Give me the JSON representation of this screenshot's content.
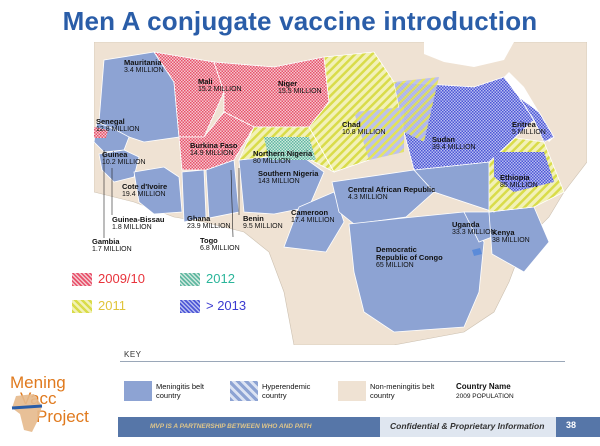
{
  "title": "Men A conjugate vaccine introduction",
  "colors": {
    "title": "#2a5da8",
    "belt": "#8da3d3",
    "non_belt": "#efe2d3",
    "ocean": "#ffffff",
    "hatch_2009": "#e8506a",
    "hatch_2011": "#d9dc4a",
    "hatch_2012": "#5fb7a0",
    "hatch_2013": "#4c55d6",
    "footer": "#5676a8"
  },
  "countries": [
    {
      "name": "Mauritania",
      "population": "3.4 MILLION"
    },
    {
      "name": "Senegal",
      "population": "12.8 MILLION"
    },
    {
      "name": "Mali",
      "population": "15.2 MILLION"
    },
    {
      "name": "Niger",
      "population": "15.5 MILLION"
    },
    {
      "name": "Chad",
      "population": "10.8 MILLION"
    },
    {
      "name": "Sudan",
      "population": "39.4 MILLION"
    },
    {
      "name": "Eritrea",
      "population": "5 MILLION"
    },
    {
      "name": "Burkina Faso",
      "population": "14.9 MILLION"
    },
    {
      "name": "Northern Nigeria",
      "population": "80 MILLION"
    },
    {
      "name": "Guinea",
      "population": "10.2 MILLION"
    },
    {
      "name": "Ethiopia",
      "population": "85 MILLION"
    },
    {
      "name": "Southern Nigeria",
      "population": "143 MILLION"
    },
    {
      "name": "Cote d'Ivoire",
      "population": "19.4 MILLION"
    },
    {
      "name": "Central African Republic",
      "population": "4.3 MILLION"
    },
    {
      "name": "Guinea-Bissau",
      "population": "1.8 MILLION"
    },
    {
      "name": "Ghana",
      "population": "23.9 MILLION"
    },
    {
      "name": "Benin",
      "population": "9.5 MILLION"
    },
    {
      "name": "Cameroon",
      "population": "17.4 MILLION"
    },
    {
      "name": "Uganda",
      "population": "33.3 MILLION"
    },
    {
      "name": "Kenya",
      "population": "38 MILLION"
    },
    {
      "name": "Gambia",
      "population": "1.7 MILLION"
    },
    {
      "name": "Togo",
      "population": "6.8 MILLION"
    },
    {
      "name": "Democratic Republic of Congo",
      "population": "65 MILLION"
    }
  ],
  "phase_legend": [
    {
      "label": "2009/10",
      "color": "#e8343c",
      "hatch": "hatch_2009"
    },
    {
      "label": "2012",
      "color": "#2bb59a",
      "hatch": "hatch_2012"
    },
    {
      "label": "2011",
      "color": "#e0c43a",
      "hatch": "hatch_2011"
    },
    {
      "label": "> 2013",
      "color": "#3a3ad0",
      "hatch": "hatch_2013"
    }
  ],
  "key": {
    "title": "KEY",
    "belt": "Meningitis belt country",
    "hyperendemic": "Hyperendemic country",
    "non_belt": "Non-meningitis belt country",
    "sample_name": "Country Name",
    "sample_pop": "2009 POPULATION"
  },
  "logo": {
    "line1": "Mening",
    "line2": "Vacc",
    "line3": "Project"
  },
  "footer": {
    "partnership": "MVP IS A PARTNERSHIP BETWEEN WHO AND PATH",
    "confidential": "Confidential & Proprietary Information",
    "page": "38"
  }
}
